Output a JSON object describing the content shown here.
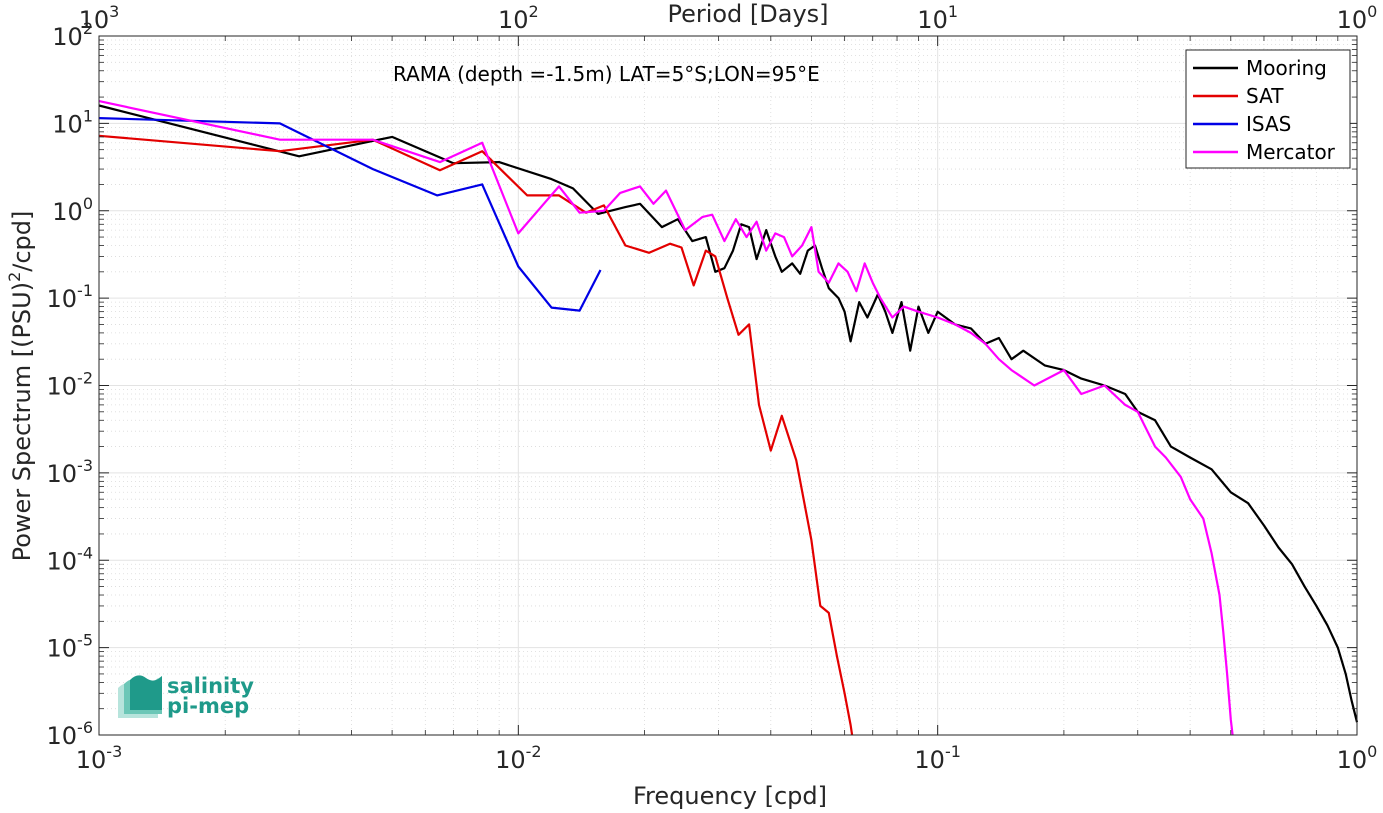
{
  "chart_data": {
    "type": "line",
    "annotation": "RAMA (depth =-1.5m) LAT=5°S;LON=95°E",
    "xlabel": "Frequency [cpd]",
    "ylabel_prefix": "Power Spectrum [(PSU)",
    "ylabel_sup": "2",
    "ylabel_suffix": "/cpd]",
    "top_xlabel": "Period [Days]",
    "xscale": "log",
    "yscale": "log",
    "xlim": [
      0.001,
      1
    ],
    "ylim": [
      1e-06,
      100
    ],
    "grid": true,
    "legend_position": "top-right",
    "x_ticks": [
      {
        "value": 0.001,
        "base": "10",
        "exp": "-3"
      },
      {
        "value": 0.01,
        "base": "10",
        "exp": "-2"
      },
      {
        "value": 0.1,
        "base": "10",
        "exp": "-1"
      },
      {
        "value": 1,
        "base": "10",
        "exp": "0"
      }
    ],
    "y_ticks": [
      {
        "value": 1e-06,
        "base": "10",
        "exp": "-6"
      },
      {
        "value": 1e-05,
        "base": "10",
        "exp": "-5"
      },
      {
        "value": 0.0001,
        "base": "10",
        "exp": "-4"
      },
      {
        "value": 0.001,
        "base": "10",
        "exp": "-3"
      },
      {
        "value": 0.01,
        "base": "10",
        "exp": "-2"
      },
      {
        "value": 0.1,
        "base": "10",
        "exp": "-1"
      },
      {
        "value": 1,
        "base": "10",
        "exp": "0"
      },
      {
        "value": 10,
        "base": "10",
        "exp": "1"
      },
      {
        "value": 100,
        "base": "10",
        "exp": "2"
      }
    ],
    "top_ticks": [
      {
        "value": 1000,
        "base": "10",
        "exp": "3"
      },
      {
        "value": 100,
        "base": "10",
        "exp": "2"
      },
      {
        "value": 10,
        "base": "10",
        "exp": "1"
      },
      {
        "value": 1,
        "base": "10",
        "exp": "0"
      }
    ],
    "series": [
      {
        "name": "Mooring",
        "color": "#000000",
        "points": [
          [
            0.001,
            16
          ],
          [
            0.003,
            4.2
          ],
          [
            0.005,
            7
          ],
          [
            0.007,
            3.5
          ],
          [
            0.009,
            3.6
          ],
          [
            0.012,
            2.3
          ],
          [
            0.0135,
            1.8
          ],
          [
            0.0155,
            0.92
          ],
          [
            0.018,
            1.1
          ],
          [
            0.0195,
            1.2
          ],
          [
            0.022,
            0.65
          ],
          [
            0.024,
            0.8
          ],
          [
            0.026,
            0.45
          ],
          [
            0.028,
            0.5
          ],
          [
            0.0295,
            0.2
          ],
          [
            0.031,
            0.22
          ],
          [
            0.0325,
            0.35
          ],
          [
            0.034,
            0.7
          ],
          [
            0.0355,
            0.65
          ],
          [
            0.037,
            0.28
          ],
          [
            0.039,
            0.6
          ],
          [
            0.041,
            0.3
          ],
          [
            0.0425,
            0.2
          ],
          [
            0.045,
            0.25
          ],
          [
            0.047,
            0.19
          ],
          [
            0.049,
            0.35
          ],
          [
            0.051,
            0.4
          ],
          [
            0.053,
            0.22
          ],
          [
            0.055,
            0.13
          ],
          [
            0.058,
            0.1
          ],
          [
            0.06,
            0.07
          ],
          [
            0.062,
            0.032
          ],
          [
            0.065,
            0.09
          ],
          [
            0.068,
            0.06
          ],
          [
            0.072,
            0.11
          ],
          [
            0.075,
            0.07
          ],
          [
            0.078,
            0.04
          ],
          [
            0.082,
            0.09
          ],
          [
            0.086,
            0.025
          ],
          [
            0.09,
            0.08
          ],
          [
            0.095,
            0.04
          ],
          [
            0.1,
            0.07
          ],
          [
            0.11,
            0.05
          ],
          [
            0.12,
            0.045
          ],
          [
            0.13,
            0.03
          ],
          [
            0.14,
            0.035
          ],
          [
            0.15,
            0.02
          ],
          [
            0.16,
            0.025
          ],
          [
            0.18,
            0.017
          ],
          [
            0.2,
            0.015
          ],
          [
            0.22,
            0.012
          ],
          [
            0.25,
            0.01
          ],
          [
            0.28,
            0.008
          ],
          [
            0.3,
            0.005
          ],
          [
            0.33,
            0.004
          ],
          [
            0.36,
            0.002
          ],
          [
            0.4,
            0.0015
          ],
          [
            0.45,
            0.0011
          ],
          [
            0.5,
            0.0006
          ],
          [
            0.55,
            0.00045
          ],
          [
            0.6,
            0.00025
          ],
          [
            0.65,
            0.00014
          ],
          [
            0.7,
            9e-05
          ],
          [
            0.75,
            5e-05
          ],
          [
            0.8,
            3e-05
          ],
          [
            0.85,
            1.8e-05
          ],
          [
            0.9,
            1e-05
          ],
          [
            0.94,
            5e-06
          ],
          [
            0.97,
            2.5e-06
          ],
          [
            1,
            1.4e-06
          ]
        ]
      },
      {
        "name": "SAT",
        "color": "#e30000",
        "points": [
          [
            0.001,
            7.2
          ],
          [
            0.0027,
            4.8
          ],
          [
            0.0045,
            6.5
          ],
          [
            0.0065,
            2.9
          ],
          [
            0.0082,
            4.8
          ],
          [
            0.0105,
            1.5
          ],
          [
            0.0125,
            1.5
          ],
          [
            0.0145,
            0.95
          ],
          [
            0.016,
            1.15
          ],
          [
            0.018,
            0.4
          ],
          [
            0.0205,
            0.33
          ],
          [
            0.023,
            0.42
          ],
          [
            0.0245,
            0.38
          ],
          [
            0.0262,
            0.14
          ],
          [
            0.028,
            0.35
          ],
          [
            0.0295,
            0.3
          ],
          [
            0.0315,
            0.1
          ],
          [
            0.0335,
            0.038
          ],
          [
            0.0355,
            0.05
          ],
          [
            0.0375,
            0.006
          ],
          [
            0.04,
            0.0018
          ],
          [
            0.0425,
            0.0045
          ],
          [
            0.046,
            0.0014
          ],
          [
            0.05,
            0.00017
          ],
          [
            0.0525,
            3e-05
          ],
          [
            0.055,
            2.5e-05
          ],
          [
            0.0575,
            8e-06
          ],
          [
            0.06,
            3e-06
          ],
          [
            0.062,
            1.3e-06
          ],
          [
            0.0625,
            1e-06
          ]
        ]
      },
      {
        "name": "ISAS",
        "color": "#0000e6",
        "points": [
          [
            0.001,
            11.5
          ],
          [
            0.0027,
            10
          ],
          [
            0.0045,
            3
          ],
          [
            0.0064,
            1.5
          ],
          [
            0.0082,
            2
          ],
          [
            0.01,
            0.23
          ],
          [
            0.012,
            0.078
          ],
          [
            0.014,
            0.072
          ],
          [
            0.0157,
            0.21
          ]
        ]
      },
      {
        "name": "Mercator",
        "color": "#ff00ff",
        "points": [
          [
            0.001,
            18
          ],
          [
            0.0027,
            6.5
          ],
          [
            0.0045,
            6.5
          ],
          [
            0.0065,
            3.6
          ],
          [
            0.0082,
            6
          ],
          [
            0.01,
            0.55
          ],
          [
            0.0115,
            1.2
          ],
          [
            0.0125,
            1.9
          ],
          [
            0.014,
            0.95
          ],
          [
            0.016,
            1
          ],
          [
            0.0175,
            1.6
          ],
          [
            0.0195,
            1.9
          ],
          [
            0.021,
            1.2
          ],
          [
            0.0225,
            1.7
          ],
          [
            0.025,
            0.6
          ],
          [
            0.0275,
            0.85
          ],
          [
            0.029,
            0.9
          ],
          [
            0.031,
            0.45
          ],
          [
            0.033,
            0.8
          ],
          [
            0.035,
            0.5
          ],
          [
            0.037,
            0.75
          ],
          [
            0.039,
            0.35
          ],
          [
            0.041,
            0.55
          ],
          [
            0.043,
            0.5
          ],
          [
            0.045,
            0.3
          ],
          [
            0.0475,
            0.4
          ],
          [
            0.05,
            0.65
          ],
          [
            0.052,
            0.2
          ],
          [
            0.055,
            0.15
          ],
          [
            0.058,
            0.25
          ],
          [
            0.061,
            0.2
          ],
          [
            0.064,
            0.12
          ],
          [
            0.067,
            0.25
          ],
          [
            0.07,
            0.15
          ],
          [
            0.073,
            0.1
          ],
          [
            0.078,
            0.06
          ],
          [
            0.083,
            0.08
          ],
          [
            0.09,
            0.07
          ],
          [
            0.1,
            0.06
          ],
          [
            0.11,
            0.05
          ],
          [
            0.12,
            0.04
          ],
          [
            0.13,
            0.03
          ],
          [
            0.14,
            0.02
          ],
          [
            0.15,
            0.015
          ],
          [
            0.17,
            0.01
          ],
          [
            0.2,
            0.015
          ],
          [
            0.22,
            0.008
          ],
          [
            0.25,
            0.01
          ],
          [
            0.28,
            0.006
          ],
          [
            0.3,
            0.005
          ],
          [
            0.33,
            0.002
          ],
          [
            0.35,
            0.0015
          ],
          [
            0.38,
            0.0009
          ],
          [
            0.4,
            0.0005
          ],
          [
            0.43,
            0.0003
          ],
          [
            0.45,
            0.00012
          ],
          [
            0.47,
            4e-05
          ],
          [
            0.48,
            1.5e-05
          ],
          [
            0.49,
            5e-06
          ],
          [
            0.5,
            1.5e-06
          ],
          [
            0.505,
            1e-06
          ]
        ]
      }
    ]
  },
  "logo": {
    "line1": "salinity",
    "line2": "pi-mep",
    "color": "#1f9a8a"
  }
}
